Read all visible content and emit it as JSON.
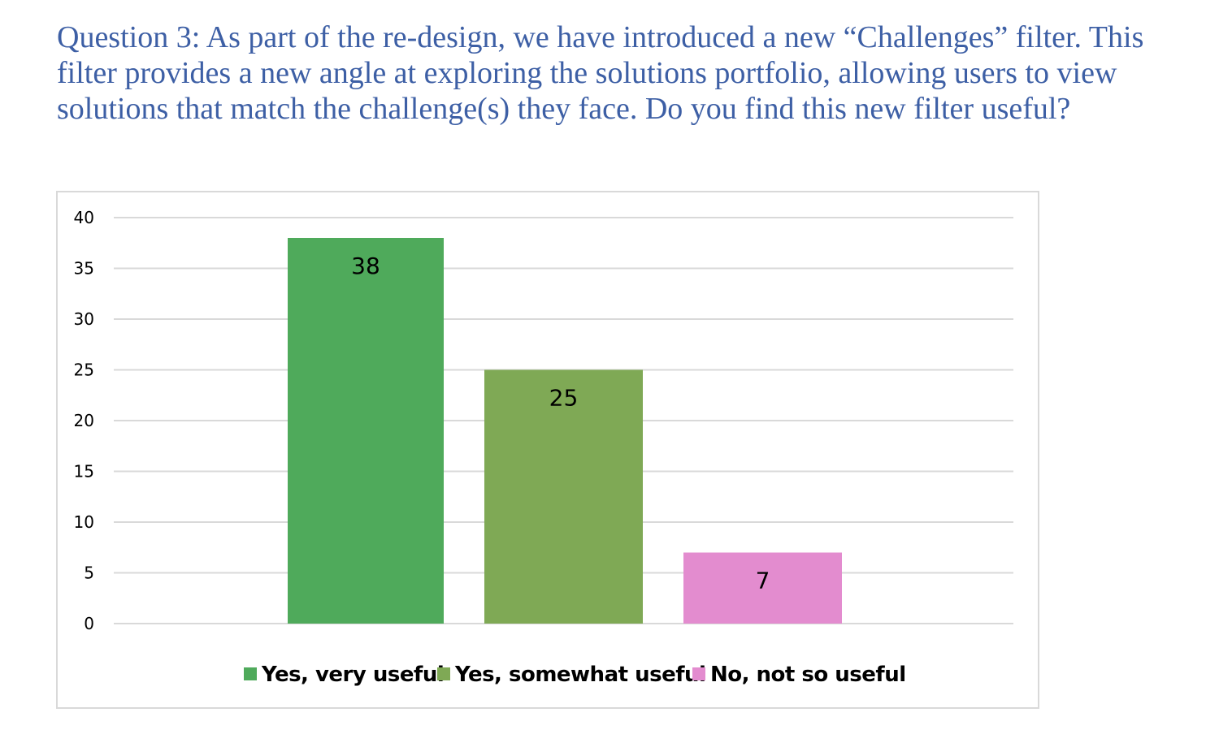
{
  "question": {
    "text": "Question 3: As part of the re-design, we have introduced a new “Challenges” filter. This filter provides a new angle at exploring the solutions portfolio, allowing users to view solutions that match the challenge(s) they face. Do you find this new filter useful?"
  },
  "chart_data": {
    "type": "bar",
    "title": "",
    "xlabel": "",
    "ylabel": "",
    "ylim": [
      0,
      40
    ],
    "yticks": [
      0,
      5,
      10,
      15,
      20,
      25,
      30,
      35,
      40
    ],
    "grid": true,
    "legend_position": "bottom",
    "series": [
      {
        "name": "Yes, very useful",
        "value": 38,
        "color": "#4faa5b"
      },
      {
        "name": "Yes, somewhat useful",
        "value": 25,
        "color": "#7fa955"
      },
      {
        "name": "No, not so useful",
        "value": 7,
        "color": "#e38ccf"
      }
    ]
  }
}
